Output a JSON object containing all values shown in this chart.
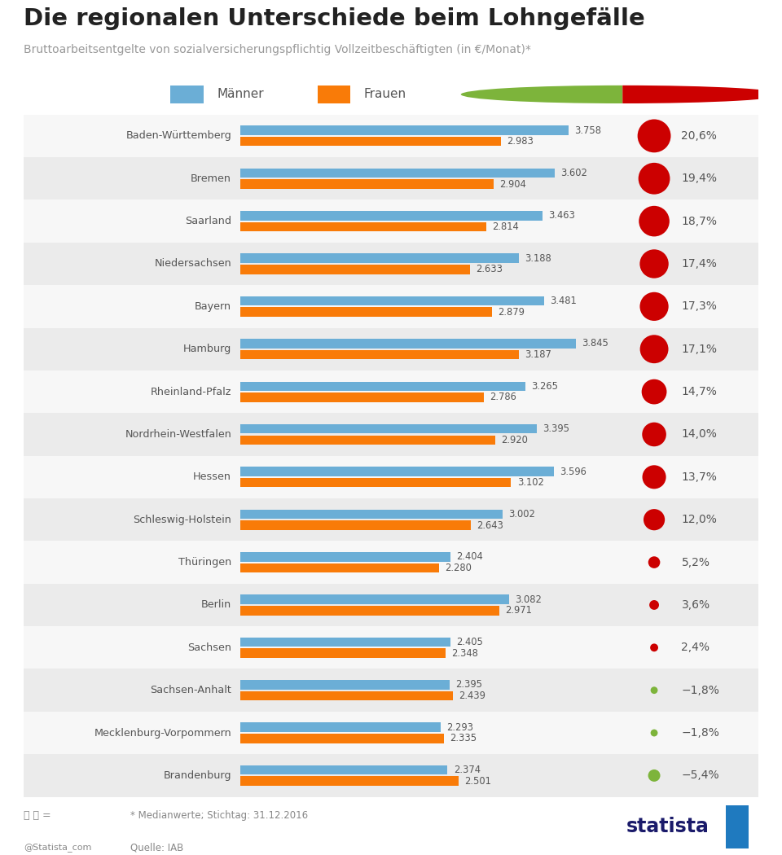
{
  "title": "Die regionalen Unterschiede beim Lohngefälle",
  "subtitle": "Bruttoarbeitsentgelte von sozialversicherungspflichtig Vollzeitbeschäftigten (in €/Monat)*",
  "footnote": "* Medianwerte; Stichtag: 31.12.2016",
  "source": "Quelle: IAB",
  "categories": [
    "Baden-Württemberg",
    "Bremen",
    "Saarland",
    "Niedersachsen",
    "Bayern",
    "Hamburg",
    "Rheinland-Pfalz",
    "Nordrhein-Westfalen",
    "Hessen",
    "Schleswig-Holstein",
    "Thüringen",
    "Berlin",
    "Sachsen",
    "Sachsen-Anhalt",
    "Mecklenburg-Vorpommern",
    "Brandenburg"
  ],
  "men_values": [
    3758,
    3602,
    3463,
    3188,
    3481,
    3845,
    3265,
    3395,
    3596,
    3002,
    2404,
    3082,
    2405,
    2395,
    2293,
    2374
  ],
  "women_values": [
    2983,
    2904,
    2814,
    2633,
    2879,
    3187,
    2786,
    2920,
    3102,
    2643,
    2280,
    2971,
    2348,
    2439,
    2335,
    2501
  ],
  "gap_values": [
    20.6,
    19.4,
    18.7,
    17.4,
    17.3,
    17.1,
    14.7,
    14.0,
    13.7,
    12.0,
    5.2,
    3.6,
    2.4,
    -1.8,
    -1.8,
    -5.4
  ],
  "men_color": "#6baed6",
  "women_color": "#f97b08",
  "gap_positive_color": "#cc0000",
  "gap_negative_color": "#7db43b",
  "row_bg_shaded": "#ebebeb",
  "row_bg_plain": "#f7f7f7",
  "title_color": "#222222",
  "subtitle_color": "#999999",
  "label_color": "#555555",
  "value_color": "#555555",
  "max_bar_value": 4000
}
